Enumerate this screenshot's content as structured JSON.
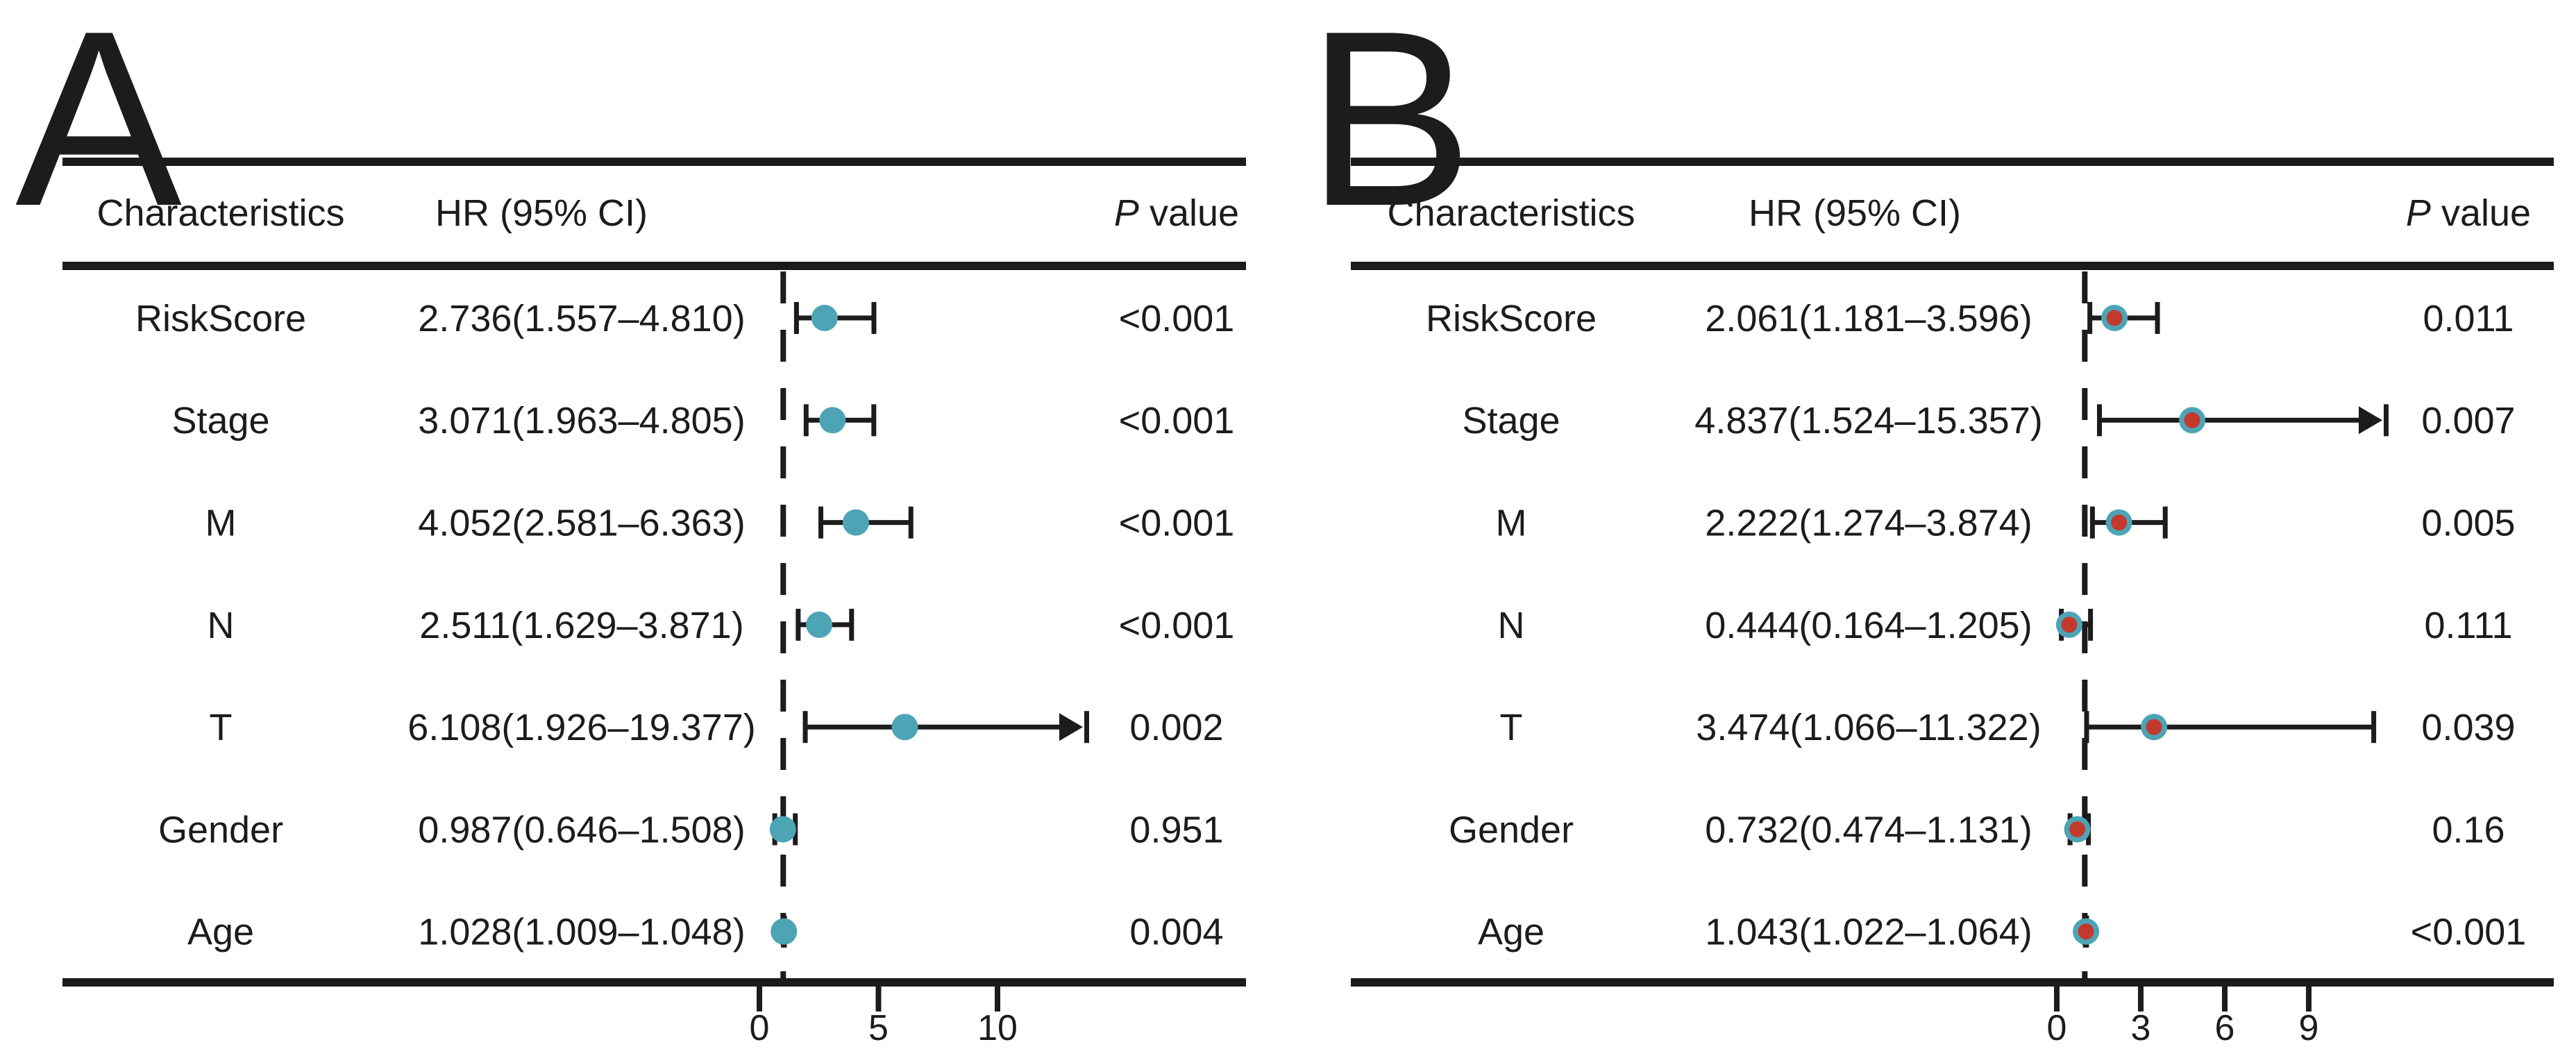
{
  "figure": {
    "background": "#ffffff",
    "text_color": "#1c1c1c",
    "line_color": "#1c1c1c"
  },
  "chart_data": [
    {
      "type": "forest",
      "panel_label": "A",
      "columns": {
        "characteristics": "Characteristics",
        "hr": "HR (95% CI)",
        "p_prefix": "P",
        "p_suffix": " value"
      },
      "reference_line": 1,
      "x_ticks": [
        0,
        5,
        10
      ],
      "marker": {
        "outer_color": "#4DA4B5",
        "inner_color": null
      },
      "rows": [
        {
          "label": "RiskScore",
          "hr": 2.736,
          "ci_low": 1.557,
          "ci_high": 4.81,
          "hr_text": "2.736(1.557–4.810)",
          "p_value": "<0.001"
        },
        {
          "label": "Stage",
          "hr": 3.071,
          "ci_low": 1.963,
          "ci_high": 4.805,
          "hr_text": "3.071(1.963–4.805)",
          "p_value": "<0.001"
        },
        {
          "label": "M",
          "hr": 4.052,
          "ci_low": 2.581,
          "ci_high": 6.363,
          "hr_text": "4.052(2.581–6.363)",
          "p_value": "<0.001"
        },
        {
          "label": "N",
          "hr": 2.511,
          "ci_low": 1.629,
          "ci_high": 3.871,
          "hr_text": "2.511(1.629–3.871)",
          "p_value": "<0.001"
        },
        {
          "label": "T",
          "hr": 6.108,
          "ci_low": 1.926,
          "ci_high": 19.377,
          "hr_text": "6.108(1.926–19.377)",
          "p_value": "0.002"
        },
        {
          "label": "Gender",
          "hr": 0.987,
          "ci_low": 0.646,
          "ci_high": 1.508,
          "hr_text": "0.987(0.646–1.508)",
          "p_value": "0.951"
        },
        {
          "label": "Age",
          "hr": 1.028,
          "ci_low": 1.009,
          "ci_high": 1.048,
          "hr_text": "1.028(1.009–1.048)",
          "p_value": "0.004"
        }
      ]
    },
    {
      "type": "forest",
      "panel_label": "B",
      "columns": {
        "characteristics": "Characteristics",
        "hr": "HR (95% CI)",
        "p_prefix": "P",
        "p_suffix": " value"
      },
      "reference_line": 1,
      "x_ticks": [
        0,
        3,
        6,
        9
      ],
      "marker": {
        "outer_color": "#4DA4B5",
        "inner_color": "#C4392E"
      },
      "rows": [
        {
          "label": "RiskScore",
          "hr": 2.061,
          "ci_low": 1.181,
          "ci_high": 3.596,
          "hr_text": "2.061(1.181–3.596)",
          "p_value": "0.011"
        },
        {
          "label": "Stage",
          "hr": 4.837,
          "ci_low": 1.524,
          "ci_high": 15.357,
          "hr_text": "4.837(1.524–15.357)",
          "p_value": "0.007"
        },
        {
          "label": "M",
          "hr": 2.222,
          "ci_low": 1.274,
          "ci_high": 3.874,
          "hr_text": "2.222(1.274–3.874)",
          "p_value": "0.005"
        },
        {
          "label": "N",
          "hr": 0.444,
          "ci_low": 0.164,
          "ci_high": 1.205,
          "hr_text": "0.444(0.164–1.205)",
          "p_value": "0.111"
        },
        {
          "label": "T",
          "hr": 3.474,
          "ci_low": 1.066,
          "ci_high": 11.322,
          "hr_text": "3.474(1.066–11.322)",
          "p_value": "0.039"
        },
        {
          "label": "Gender",
          "hr": 0.732,
          "ci_low": 0.474,
          "ci_high": 1.131,
          "hr_text": "0.732(0.474–1.131)",
          "p_value": "0.16"
        },
        {
          "label": "Age",
          "hr": 1.043,
          "ci_low": 1.022,
          "ci_high": 1.064,
          "hr_text": "1.043(1.022–1.064)",
          "p_value": "<0.001"
        }
      ]
    }
  ]
}
